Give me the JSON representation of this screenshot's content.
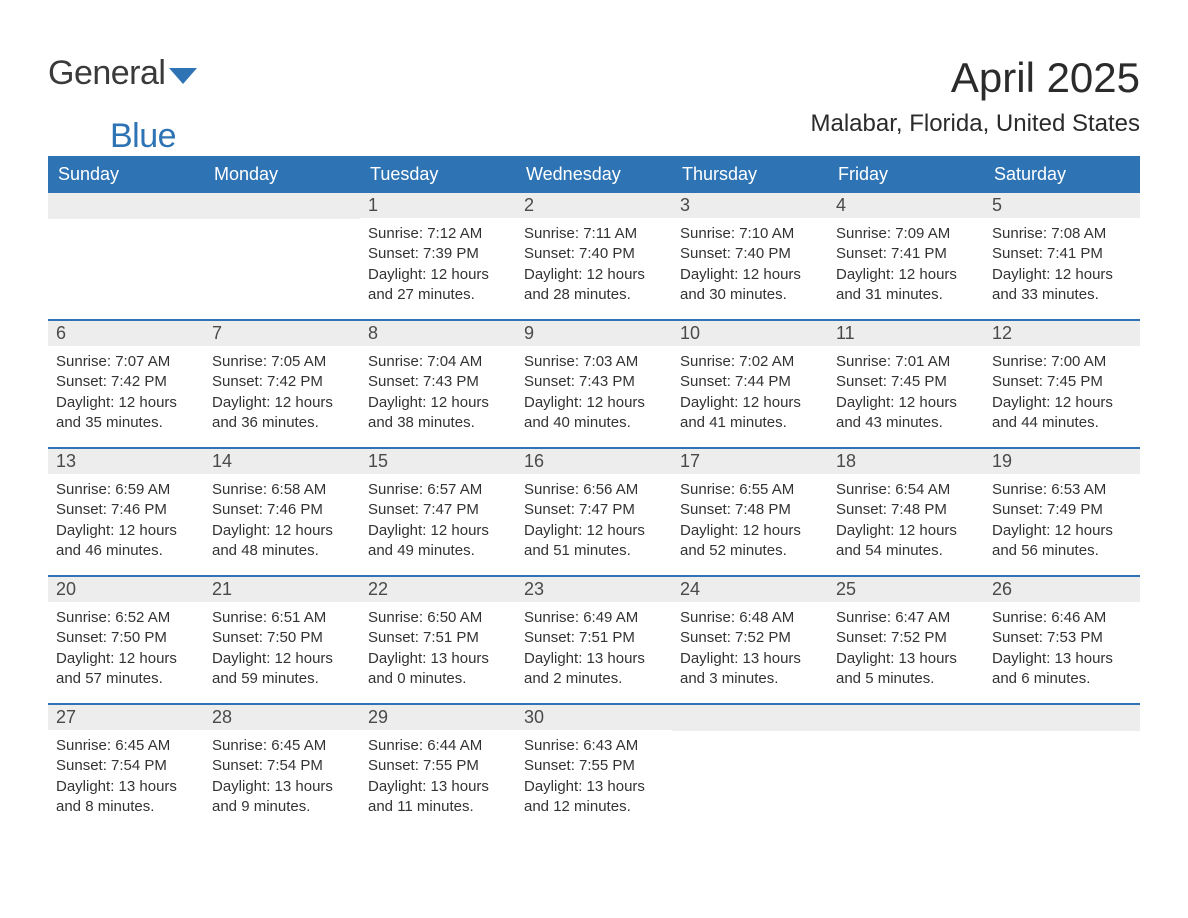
{
  "logo": {
    "text_dark": "General",
    "text_blue": "Blue",
    "accent_color": "#2e74b5"
  },
  "title": "April 2025",
  "subtitle": "Malabar, Florida, United States",
  "colors": {
    "header_bg": "#2e74b5",
    "header_text": "#ffffff",
    "daynum_bg": "#ededed",
    "daynum_text": "#4a4a4a",
    "body_text": "#333333",
    "page_bg": "#ffffff",
    "week_border": "#2e74b5"
  },
  "typography": {
    "title_fontsize": 42,
    "subtitle_fontsize": 24,
    "logo_fontsize": 34,
    "header_fontsize": 18,
    "daynum_fontsize": 18,
    "facts_fontsize": 15
  },
  "day_headers": [
    "Sunday",
    "Monday",
    "Tuesday",
    "Wednesday",
    "Thursday",
    "Friday",
    "Saturday"
  ],
  "weeks": [
    [
      {
        "num": "",
        "sunrise": "",
        "sunset": "",
        "daylight": ""
      },
      {
        "num": "",
        "sunrise": "",
        "sunset": "",
        "daylight": ""
      },
      {
        "num": "1",
        "sunrise": "Sunrise: 7:12 AM",
        "sunset": "Sunset: 7:39 PM",
        "daylight": "Daylight: 12 hours and 27 minutes."
      },
      {
        "num": "2",
        "sunrise": "Sunrise: 7:11 AM",
        "sunset": "Sunset: 7:40 PM",
        "daylight": "Daylight: 12 hours and 28 minutes."
      },
      {
        "num": "3",
        "sunrise": "Sunrise: 7:10 AM",
        "sunset": "Sunset: 7:40 PM",
        "daylight": "Daylight: 12 hours and 30 minutes."
      },
      {
        "num": "4",
        "sunrise": "Sunrise: 7:09 AM",
        "sunset": "Sunset: 7:41 PM",
        "daylight": "Daylight: 12 hours and 31 minutes."
      },
      {
        "num": "5",
        "sunrise": "Sunrise: 7:08 AM",
        "sunset": "Sunset: 7:41 PM",
        "daylight": "Daylight: 12 hours and 33 minutes."
      }
    ],
    [
      {
        "num": "6",
        "sunrise": "Sunrise: 7:07 AM",
        "sunset": "Sunset: 7:42 PM",
        "daylight": "Daylight: 12 hours and 35 minutes."
      },
      {
        "num": "7",
        "sunrise": "Sunrise: 7:05 AM",
        "sunset": "Sunset: 7:42 PM",
        "daylight": "Daylight: 12 hours and 36 minutes."
      },
      {
        "num": "8",
        "sunrise": "Sunrise: 7:04 AM",
        "sunset": "Sunset: 7:43 PM",
        "daylight": "Daylight: 12 hours and 38 minutes."
      },
      {
        "num": "9",
        "sunrise": "Sunrise: 7:03 AM",
        "sunset": "Sunset: 7:43 PM",
        "daylight": "Daylight: 12 hours and 40 minutes."
      },
      {
        "num": "10",
        "sunrise": "Sunrise: 7:02 AM",
        "sunset": "Sunset: 7:44 PM",
        "daylight": "Daylight: 12 hours and 41 minutes."
      },
      {
        "num": "11",
        "sunrise": "Sunrise: 7:01 AM",
        "sunset": "Sunset: 7:45 PM",
        "daylight": "Daylight: 12 hours and 43 minutes."
      },
      {
        "num": "12",
        "sunrise": "Sunrise: 7:00 AM",
        "sunset": "Sunset: 7:45 PM",
        "daylight": "Daylight: 12 hours and 44 minutes."
      }
    ],
    [
      {
        "num": "13",
        "sunrise": "Sunrise: 6:59 AM",
        "sunset": "Sunset: 7:46 PM",
        "daylight": "Daylight: 12 hours and 46 minutes."
      },
      {
        "num": "14",
        "sunrise": "Sunrise: 6:58 AM",
        "sunset": "Sunset: 7:46 PM",
        "daylight": "Daylight: 12 hours and 48 minutes."
      },
      {
        "num": "15",
        "sunrise": "Sunrise: 6:57 AM",
        "sunset": "Sunset: 7:47 PM",
        "daylight": "Daylight: 12 hours and 49 minutes."
      },
      {
        "num": "16",
        "sunrise": "Sunrise: 6:56 AM",
        "sunset": "Sunset: 7:47 PM",
        "daylight": "Daylight: 12 hours and 51 minutes."
      },
      {
        "num": "17",
        "sunrise": "Sunrise: 6:55 AM",
        "sunset": "Sunset: 7:48 PM",
        "daylight": "Daylight: 12 hours and 52 minutes."
      },
      {
        "num": "18",
        "sunrise": "Sunrise: 6:54 AM",
        "sunset": "Sunset: 7:48 PM",
        "daylight": "Daylight: 12 hours and 54 minutes."
      },
      {
        "num": "19",
        "sunrise": "Sunrise: 6:53 AM",
        "sunset": "Sunset: 7:49 PM",
        "daylight": "Daylight: 12 hours and 56 minutes."
      }
    ],
    [
      {
        "num": "20",
        "sunrise": "Sunrise: 6:52 AM",
        "sunset": "Sunset: 7:50 PM",
        "daylight": "Daylight: 12 hours and 57 minutes."
      },
      {
        "num": "21",
        "sunrise": "Sunrise: 6:51 AM",
        "sunset": "Sunset: 7:50 PM",
        "daylight": "Daylight: 12 hours and 59 minutes."
      },
      {
        "num": "22",
        "sunrise": "Sunrise: 6:50 AM",
        "sunset": "Sunset: 7:51 PM",
        "daylight": "Daylight: 13 hours and 0 minutes."
      },
      {
        "num": "23",
        "sunrise": "Sunrise: 6:49 AM",
        "sunset": "Sunset: 7:51 PM",
        "daylight": "Daylight: 13 hours and 2 minutes."
      },
      {
        "num": "24",
        "sunrise": "Sunrise: 6:48 AM",
        "sunset": "Sunset: 7:52 PM",
        "daylight": "Daylight: 13 hours and 3 minutes."
      },
      {
        "num": "25",
        "sunrise": "Sunrise: 6:47 AM",
        "sunset": "Sunset: 7:52 PM",
        "daylight": "Daylight: 13 hours and 5 minutes."
      },
      {
        "num": "26",
        "sunrise": "Sunrise: 6:46 AM",
        "sunset": "Sunset: 7:53 PM",
        "daylight": "Daylight: 13 hours and 6 minutes."
      }
    ],
    [
      {
        "num": "27",
        "sunrise": "Sunrise: 6:45 AM",
        "sunset": "Sunset: 7:54 PM",
        "daylight": "Daylight: 13 hours and 8 minutes."
      },
      {
        "num": "28",
        "sunrise": "Sunrise: 6:45 AM",
        "sunset": "Sunset: 7:54 PM",
        "daylight": "Daylight: 13 hours and 9 minutes."
      },
      {
        "num": "29",
        "sunrise": "Sunrise: 6:44 AM",
        "sunset": "Sunset: 7:55 PM",
        "daylight": "Daylight: 13 hours and 11 minutes."
      },
      {
        "num": "30",
        "sunrise": "Sunrise: 6:43 AM",
        "sunset": "Sunset: 7:55 PM",
        "daylight": "Daylight: 13 hours and 12 minutes."
      },
      {
        "num": "",
        "sunrise": "",
        "sunset": "",
        "daylight": ""
      },
      {
        "num": "",
        "sunrise": "",
        "sunset": "",
        "daylight": ""
      },
      {
        "num": "",
        "sunrise": "",
        "sunset": "",
        "daylight": ""
      }
    ]
  ]
}
